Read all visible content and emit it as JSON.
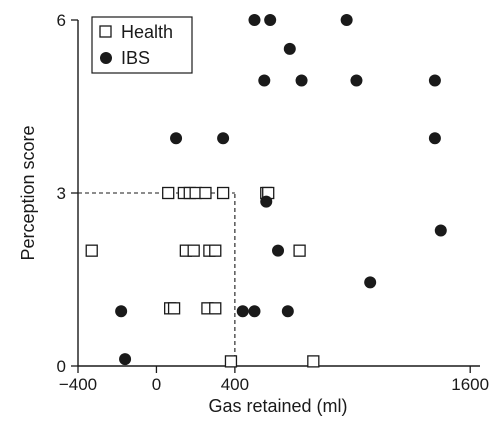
{
  "chart_data": {
    "type": "scatter",
    "title": "",
    "xlabel": "Gas retained (ml)",
    "ylabel": "Perception score",
    "xlim": [
      -400,
      1650
    ],
    "ylim": [
      0,
      6
    ],
    "x_ticks": [
      -400,
      0,
      400,
      1600
    ],
    "x_tick_labels": [
      "−400",
      "0",
      "400",
      "1600"
    ],
    "y_ticks": [
      0,
      3,
      6
    ],
    "y_tick_labels": [
      "0",
      "3",
      "6"
    ],
    "grid": false,
    "legend_position": "top-left",
    "reference_lines": [
      {
        "type": "horizontal",
        "y": 3,
        "x_from": -400,
        "x_to": 400,
        "style": "dashed"
      },
      {
        "type": "vertical",
        "x": 400,
        "y_from": 0,
        "y_to": 3,
        "style": "dashed"
      }
    ],
    "series": [
      {
        "name": "Health",
        "marker": "open-square",
        "color": "#1a1a1a",
        "points": [
          [
            -330,
            2
          ],
          [
            60,
            3
          ],
          [
            140,
            3
          ],
          [
            170,
            3
          ],
          [
            200,
            3
          ],
          [
            250,
            3
          ],
          [
            340,
            3
          ],
          [
            150,
            2
          ],
          [
            190,
            2
          ],
          [
            270,
            2
          ],
          [
            300,
            2
          ],
          [
            70,
            1
          ],
          [
            90,
            1
          ],
          [
            260,
            1
          ],
          [
            300,
            1
          ],
          [
            560,
            3
          ],
          [
            570,
            3
          ],
          [
            730,
            2
          ],
          [
            380,
            0.08
          ],
          [
            800,
            0.08
          ]
        ]
      },
      {
        "name": "IBS",
        "marker": "filled-circle",
        "color": "#1a1a1a",
        "points": [
          [
            500,
            6
          ],
          [
            580,
            6
          ],
          [
            970,
            6
          ],
          [
            680,
            5.5
          ],
          [
            550,
            4.95
          ],
          [
            740,
            4.95
          ],
          [
            1020,
            4.95
          ],
          [
            1420,
            4.95
          ],
          [
            100,
            3.95
          ],
          [
            340,
            3.95
          ],
          [
            1420,
            3.95
          ],
          [
            560,
            2.85
          ],
          [
            620,
            2
          ],
          [
            1450,
            2.35
          ],
          [
            1090,
            1.45
          ],
          [
            -180,
            0.95
          ],
          [
            440,
            0.95
          ],
          [
            500,
            0.95
          ],
          [
            670,
            0.95
          ],
          [
            -160,
            0.12
          ]
        ]
      }
    ]
  }
}
